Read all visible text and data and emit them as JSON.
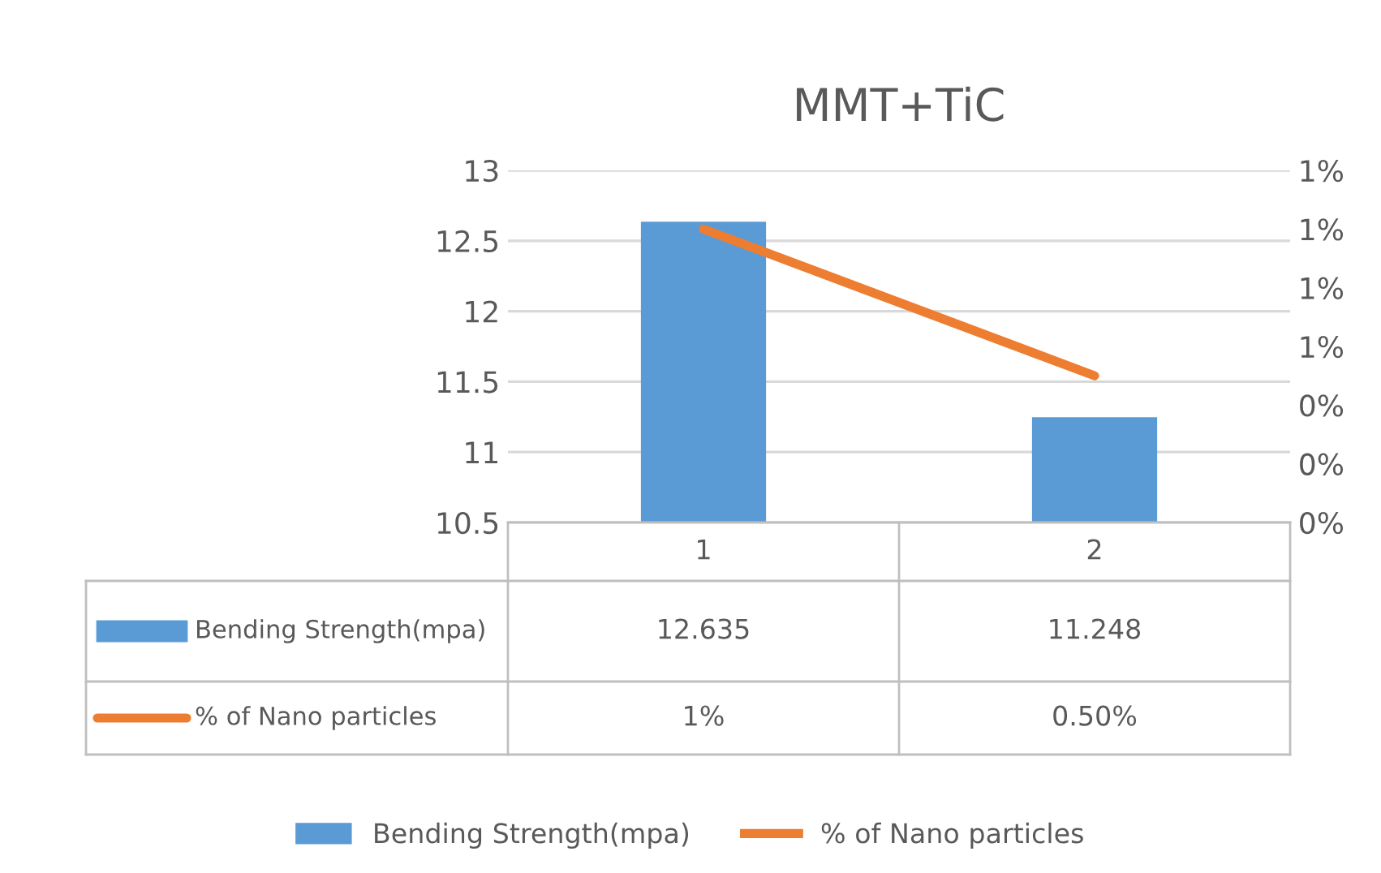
{
  "chart_data": {
    "type": "bar",
    "title": "MMT+TiC",
    "categories": [
      "1",
      "2"
    ],
    "series": [
      {
        "name": "Bending Strength(mpa)",
        "color": "#5b9bd5",
        "values": [
          12.635,
          11.248
        ],
        "value_labels": [
          "12.635",
          "11.248"
        ]
      },
      {
        "name": "% of Nano particles",
        "type": "line",
        "axis": "y2",
        "color": "#ed7d31",
        "values": [
          1,
          0.5
        ],
        "value_labels": [
          "1%",
          "0.50%"
        ]
      }
    ],
    "ylim": [
      10.5,
      13
    ],
    "yticks": [
      10.5,
      11,
      11.5,
      12,
      12.5,
      13
    ],
    "y2lim": [
      0,
      1.2
    ],
    "y2ticks": [
      {
        "value": 0,
        "label": "0%"
      },
      {
        "value": 0.2,
        "label": "0%"
      },
      {
        "value": 0.4,
        "label": "0%"
      },
      {
        "value": 0.6,
        "label": "1%"
      },
      {
        "value": 0.8,
        "label": "1%"
      },
      {
        "value": 1.0,
        "label": "1%"
      },
      {
        "value": 1.2,
        "label": "1%"
      }
    ],
    "grid": "y",
    "legend": "bottom",
    "marker": "none",
    "line_style": "solid"
  }
}
